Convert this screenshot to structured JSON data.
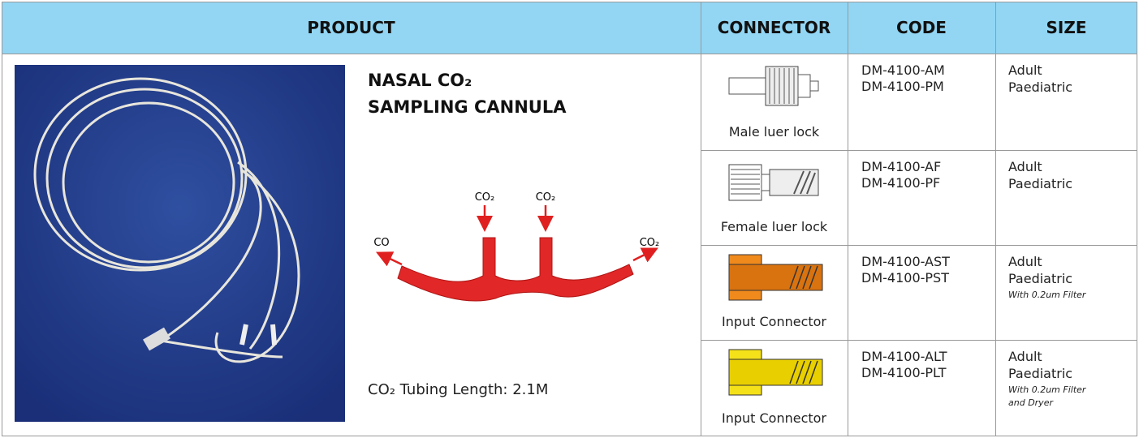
{
  "header": {
    "product": "PRODUCT",
    "connector": "CONNECTOR",
    "code": "CODE",
    "size": "SIZE"
  },
  "product": {
    "title": [
      "NASAL CO₂",
      "SAMPLING CANNULA"
    ],
    "diagram_labels": [
      "CO₂",
      "CO₂",
      "CO",
      "CO₂"
    ],
    "tubing": "CO₂ Tubing Length: 2.1M"
  },
  "rows": [
    {
      "connector": "Male luer lock",
      "codes": [
        "DM-4100-AM",
        "DM-4100-PM"
      ],
      "sizes": [
        "Adult",
        "Paediatric"
      ],
      "notes": []
    },
    {
      "connector": "Female luer lock",
      "codes": [
        "DM-4100-AF",
        "DM-4100-PF"
      ],
      "sizes": [
        "Adult",
        "Paediatric"
      ],
      "notes": []
    },
    {
      "connector": "Input Connector",
      "codes": [
        "DM-4100-AST",
        "DM-4100-PST"
      ],
      "sizes": [
        "Adult",
        "Paediatric"
      ],
      "notes": [
        "With 0.2um Filter"
      ]
    },
    {
      "connector": "Input Connector",
      "codes": [
        "DM-4100-ALT",
        "DM-4100-PLT"
      ],
      "sizes": [
        "Adult",
        "Paediatric"
      ],
      "notes": [
        "With 0.2um Filter",
        "and Dryer"
      ]
    }
  ]
}
